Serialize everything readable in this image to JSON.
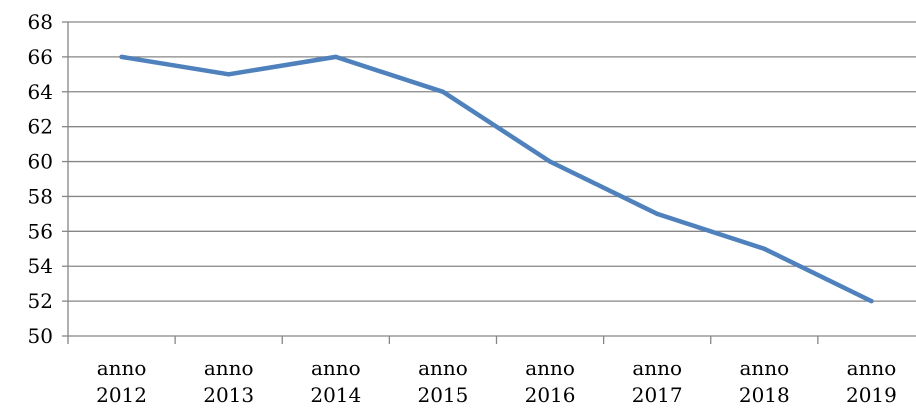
{
  "chart_data": {
    "type": "line",
    "categories": [
      "anno 2012",
      "anno 2013",
      "anno 2014",
      "anno 2015",
      "anno 2016",
      "anno 2017",
      "anno 2018",
      "anno 2019"
    ],
    "category_lines": [
      [
        "anno",
        "2012"
      ],
      [
        "anno",
        "2013"
      ],
      [
        "anno",
        "2014"
      ],
      [
        "anno",
        "2015"
      ],
      [
        "anno",
        "2016"
      ],
      [
        "anno",
        "2017"
      ],
      [
        "anno",
        "2018"
      ],
      [
        "anno",
        "2019"
      ]
    ],
    "series": [
      {
        "values": [
          66,
          65,
          66,
          64,
          60,
          57,
          55,
          52
        ]
      }
    ],
    "yticks": [
      50,
      52,
      54,
      56,
      58,
      60,
      62,
      64,
      66,
      68
    ],
    "ylim": [
      50,
      68
    ],
    "title": "",
    "xlabel": "",
    "ylabel": "",
    "grid": true,
    "legend": "none",
    "colors": {
      "series": "#4F81BD",
      "grid": "#868686",
      "axis": "#868686"
    }
  }
}
